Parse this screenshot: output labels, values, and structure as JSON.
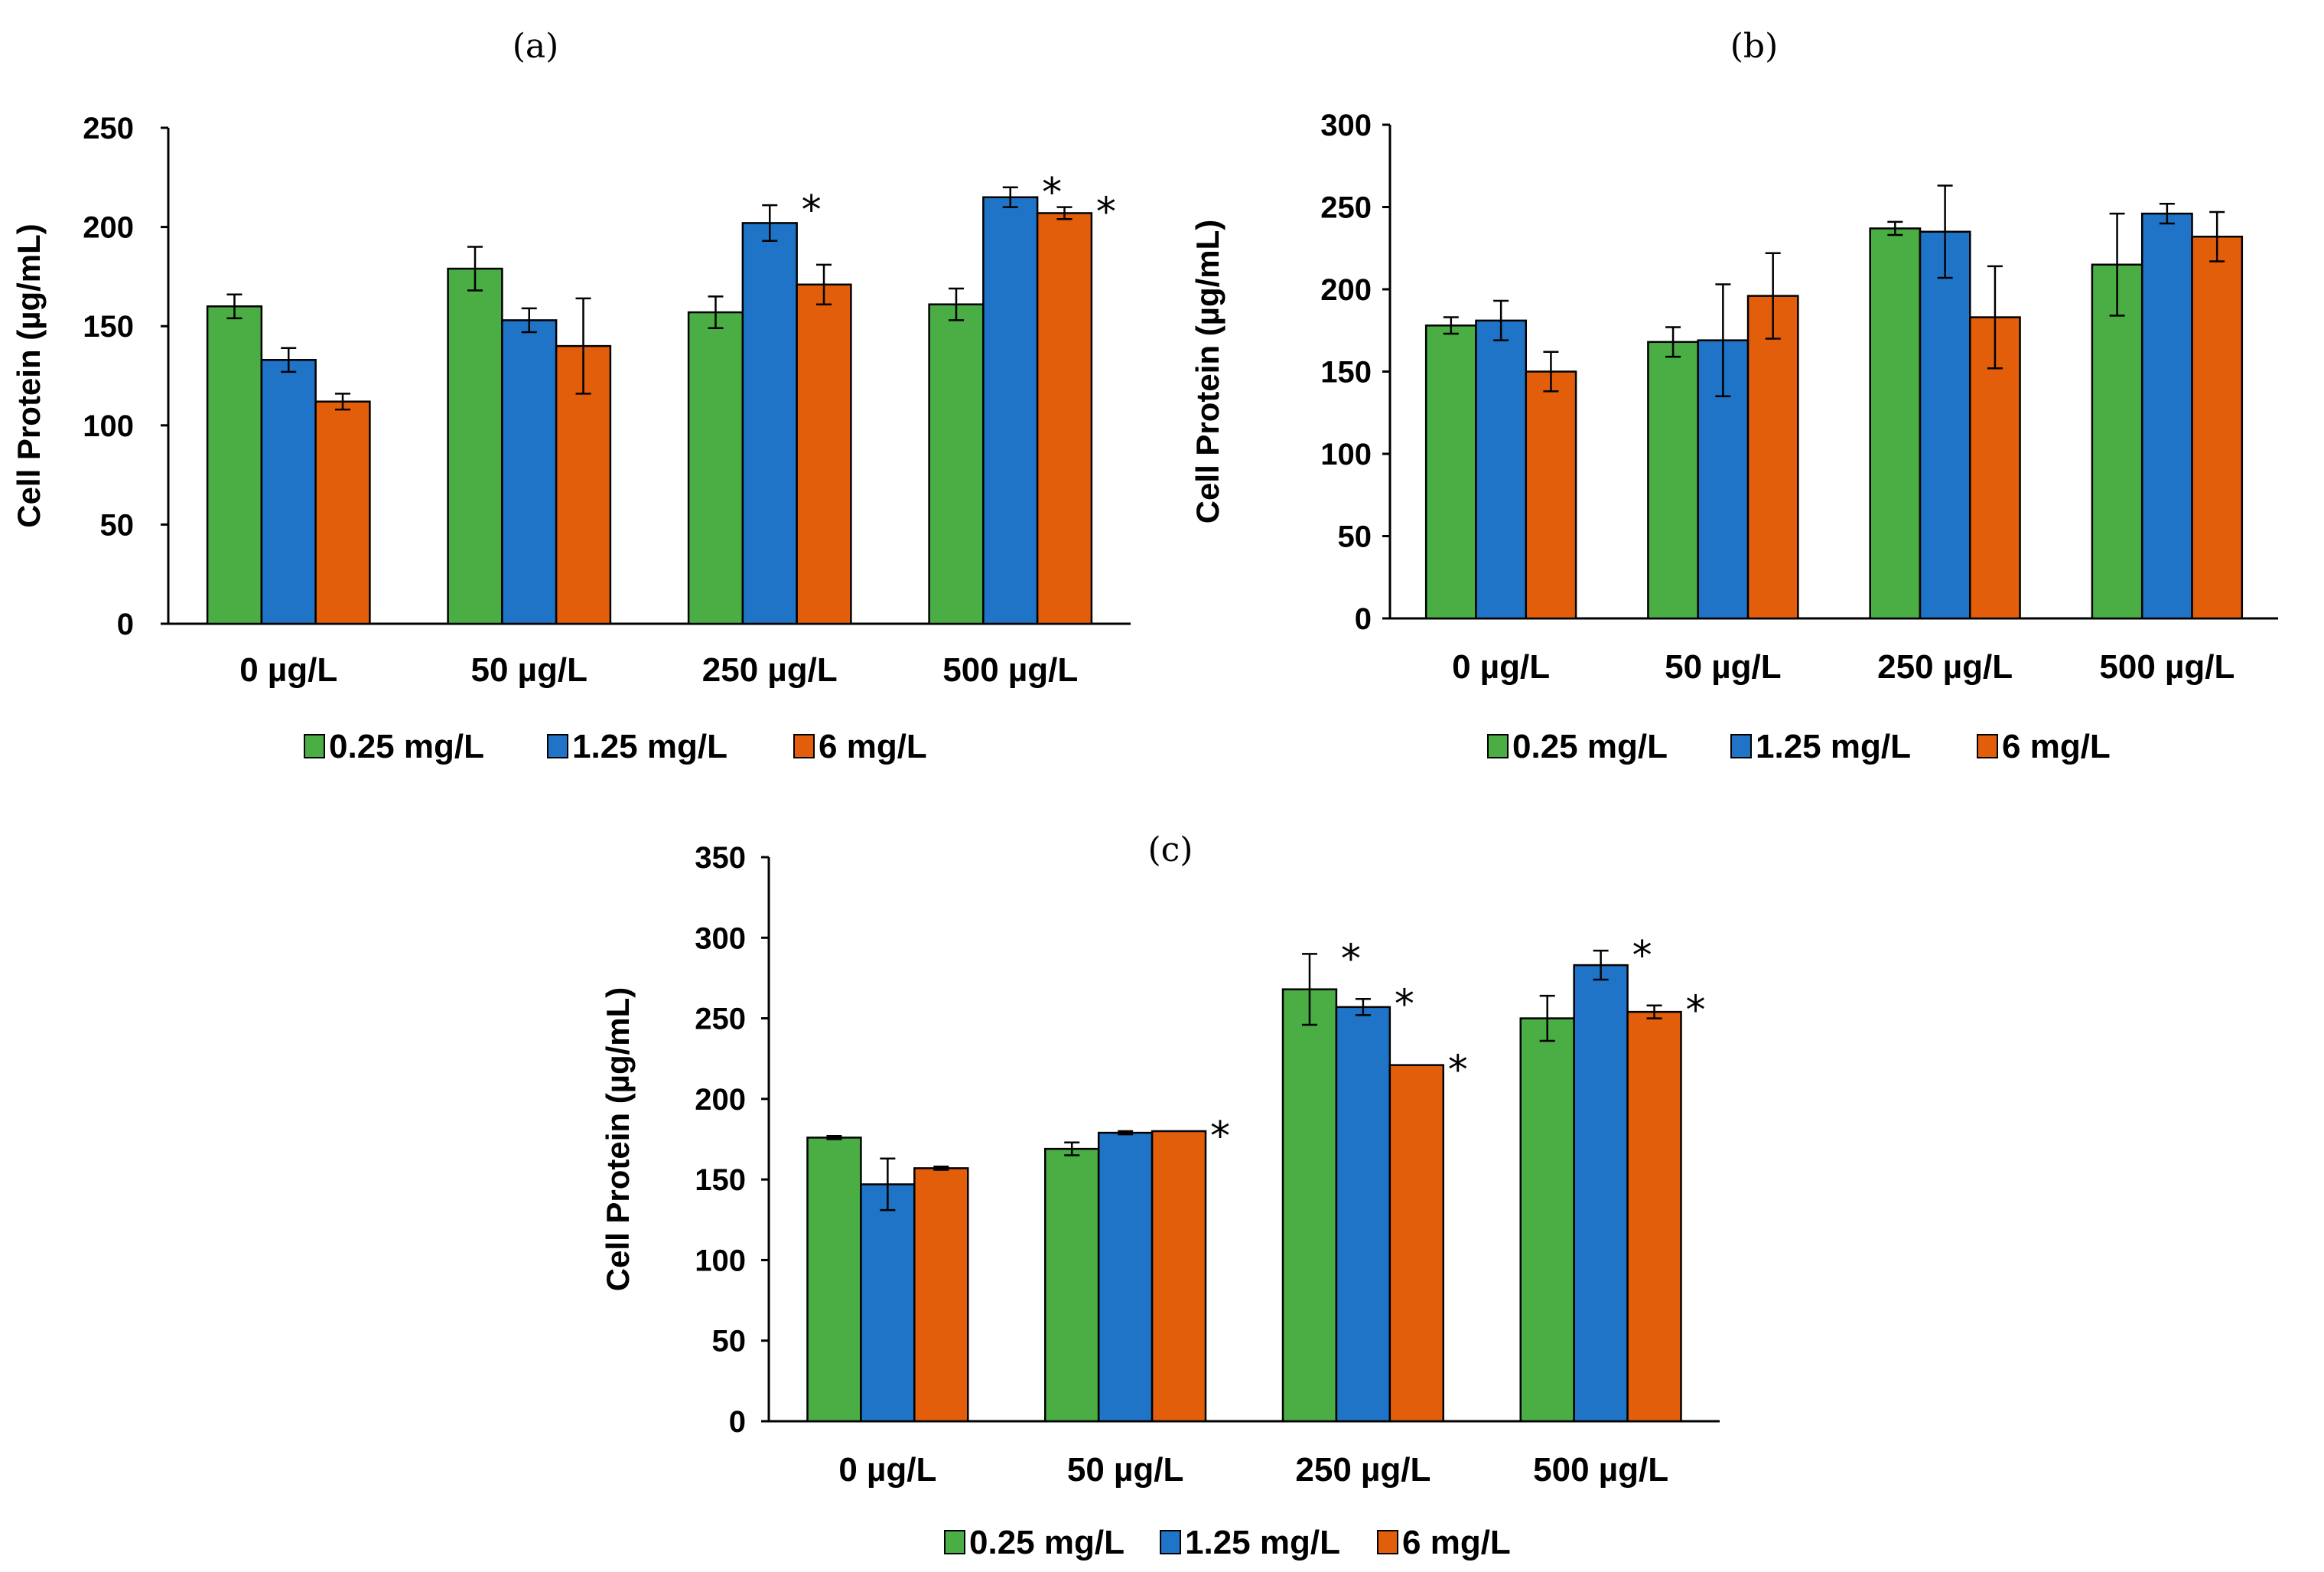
{
  "chart_data": [
    {
      "type": "bar",
      "panel_label": "(a)",
      "ylabel": "Cell Protein (µg/mL)",
      "xlabel": "",
      "ylim": [
        0,
        250
      ],
      "yticks": [
        "0",
        "50",
        "100",
        "150",
        "200",
        "250"
      ],
      "categories": [
        "0 µg/L",
        "50 µg/L",
        "250 µg/L",
        "500 µg/L"
      ],
      "series": [
        {
          "name": "0.25 mg/L",
          "color": "#4aae45",
          "values": [
            160,
            179,
            157,
            161
          ],
          "errors": [
            6,
            11,
            8,
            8
          ],
          "significant": [
            false,
            false,
            false,
            false
          ]
        },
        {
          "name": "1.25 mg/L",
          "color": "#1f74c8",
          "values": [
            133,
            153,
            202,
            215
          ],
          "errors": [
            6,
            6,
            9,
            5
          ],
          "significant": [
            false,
            false,
            true,
            true
          ]
        },
        {
          "name": "6 mg/L",
          "color": "#e35e0b",
          "values": [
            112,
            140,
            171,
            207
          ],
          "errors": [
            4,
            24,
            10,
            3
          ],
          "significant": [
            false,
            false,
            false,
            true
          ]
        }
      ],
      "significance_marker": "*",
      "legend": [
        "0.25 mg/L",
        "1.25 mg/L",
        "6 mg/L"
      ],
      "legend_position": "bottom"
    },
    {
      "type": "bar",
      "panel_label": "(b)",
      "ylabel": "Cell Protein (µg/mL)",
      "xlabel": "",
      "ylim": [
        0,
        300
      ],
      "yticks": [
        "0",
        "50",
        "100",
        "150",
        "200",
        "250",
        "300"
      ],
      "categories": [
        "0 µg/L",
        "50 µg/L",
        "250 µg/L",
        "500 µg/L"
      ],
      "series": [
        {
          "name": "0.25 mg/L",
          "color": "#4aae45",
          "values": [
            178,
            168,
            237,
            215
          ],
          "errors": [
            5,
            9,
            4,
            31
          ],
          "significant": [
            false,
            false,
            false,
            false
          ]
        },
        {
          "name": "1.25 mg/L",
          "color": "#1f74c8",
          "values": [
            181,
            169,
            235,
            246
          ],
          "errors": [
            12,
            34,
            28,
            6
          ],
          "significant": [
            false,
            false,
            false,
            false
          ]
        },
        {
          "name": "6 mg/L",
          "color": "#e35e0b",
          "values": [
            150,
            196,
            183,
            232
          ],
          "errors": [
            12,
            26,
            31,
            15
          ],
          "significant": [
            false,
            false,
            false,
            false
          ]
        }
      ],
      "significance_marker": "*",
      "legend": [
        "0.25 mg/L",
        "1.25 mg/L",
        "6 mg/L"
      ],
      "legend_position": "bottom"
    },
    {
      "type": "bar",
      "panel_label": "(c)",
      "ylabel": "Cell Protein (µg/mL)",
      "xlabel": "",
      "ylim": [
        0,
        350
      ],
      "yticks": [
        "0",
        "50",
        "100",
        "150",
        "200",
        "250",
        "300",
        "350"
      ],
      "categories": [
        "0 µg/L",
        "50 µg/L",
        "250 µg/L",
        "500 µg/L"
      ],
      "series": [
        {
          "name": "0.25 mg/L",
          "color": "#4aae45",
          "values": [
            176,
            169,
            268,
            250
          ],
          "errors": [
            1,
            4,
            22,
            14
          ],
          "significant": [
            false,
            false,
            true,
            false
          ]
        },
        {
          "name": "1.25 mg/L",
          "color": "#1f74c8",
          "values": [
            147,
            179,
            257,
            283
          ],
          "errors": [
            16,
            1,
            5,
            9
          ],
          "significant": [
            false,
            false,
            true,
            true
          ]
        },
        {
          "name": "6 mg/L",
          "color": "#e35e0b",
          "values": [
            157,
            180,
            221,
            254
          ],
          "errors": [
            1,
            0,
            0,
            4
          ],
          "significant": [
            false,
            true,
            true,
            true
          ]
        }
      ],
      "significance_marker": "*",
      "legend": [
        "0.25 mg/L",
        "1.25 mg/L",
        "6 mg/L"
      ],
      "legend_position": "bottom"
    }
  ]
}
